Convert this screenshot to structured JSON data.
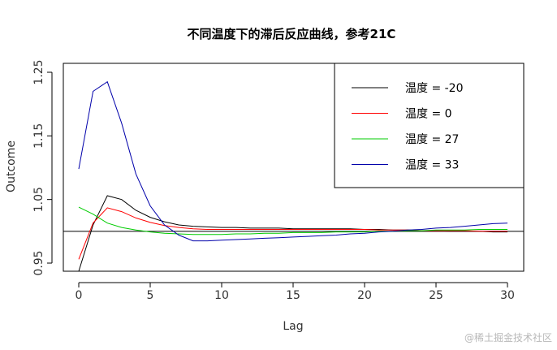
{
  "chart_data": {
    "type": "line",
    "title": "不同温度下的滞后反应曲线，参考21C",
    "xlabel": "Lag",
    "ylabel": "Outcome",
    "xlim": [
      0,
      30
    ],
    "ylim": [
      0.94,
      1.26
    ],
    "xticks": [
      0,
      5,
      10,
      15,
      20,
      25,
      30
    ],
    "xtick_labels": [
      "0",
      "5",
      "10",
      "15",
      "20",
      "25",
      "30"
    ],
    "yticks": [
      0.95,
      1.05,
      1.15,
      1.25
    ],
    "ytick_labels": [
      "0.95",
      "1.05",
      "1.15",
      "1.25"
    ],
    "reference_line": 1.0,
    "legend_position": "top-right",
    "x": [
      0,
      1,
      2,
      3,
      4,
      5,
      6,
      7,
      8,
      9,
      10,
      11,
      12,
      13,
      14,
      15,
      16,
      17,
      18,
      19,
      20,
      21,
      22,
      23,
      24,
      25,
      26,
      27,
      28,
      29,
      30
    ],
    "series": [
      {
        "name": "温度 = -20",
        "color": "#000000",
        "values": [
          0.93,
          1.01,
          1.056,
          1.05,
          1.033,
          1.022,
          1.015,
          1.01,
          1.008,
          1.007,
          1.006,
          1.006,
          1.005,
          1.005,
          1.005,
          1.004,
          1.004,
          1.004,
          1.004,
          1.004,
          1.003,
          1.003,
          1.002,
          1.002,
          1.001,
          1.001,
          1.0,
          1.0,
          1.0,
          0.999,
          0.999
        ]
      },
      {
        "name": "温度 = 0",
        "color": "#ff0000",
        "values": [
          0.956,
          1.013,
          1.037,
          1.031,
          1.021,
          1.014,
          1.009,
          1.006,
          1.004,
          1.003,
          1.003,
          1.003,
          1.003,
          1.003,
          1.003,
          1.003,
          1.003,
          1.003,
          1.003,
          1.003,
          1.003,
          1.002,
          1.002,
          1.002,
          1.001,
          1.001,
          1.001,
          1.001,
          1.0,
          1.0,
          1.0
        ]
      },
      {
        "name": "温度 = 27",
        "color": "#00cc00",
        "values": [
          1.038,
          1.027,
          1.013,
          1.006,
          1.002,
          0.999,
          0.997,
          0.996,
          0.995,
          0.995,
          0.995,
          0.996,
          0.996,
          0.997,
          0.997,
          0.998,
          0.998,
          0.998,
          0.999,
          0.999,
          0.999,
          1.0,
          1.0,
          1.001,
          1.001,
          1.002,
          1.002,
          1.002,
          1.003,
          1.003,
          1.003
        ]
      },
      {
        "name": "温度 = 33",
        "color": "#0000aa",
        "values": [
          1.098,
          1.22,
          1.235,
          1.17,
          1.09,
          1.04,
          1.01,
          0.994,
          0.985,
          0.985,
          0.986,
          0.987,
          0.988,
          0.989,
          0.99,
          0.991,
          0.992,
          0.993,
          0.994,
          0.996,
          0.997,
          0.999,
          1.0,
          1.002,
          1.003,
          1.005,
          1.006,
          1.008,
          1.01,
          1.012,
          1.013
        ]
      }
    ]
  },
  "watermark": "@稀土掘金技术社区"
}
